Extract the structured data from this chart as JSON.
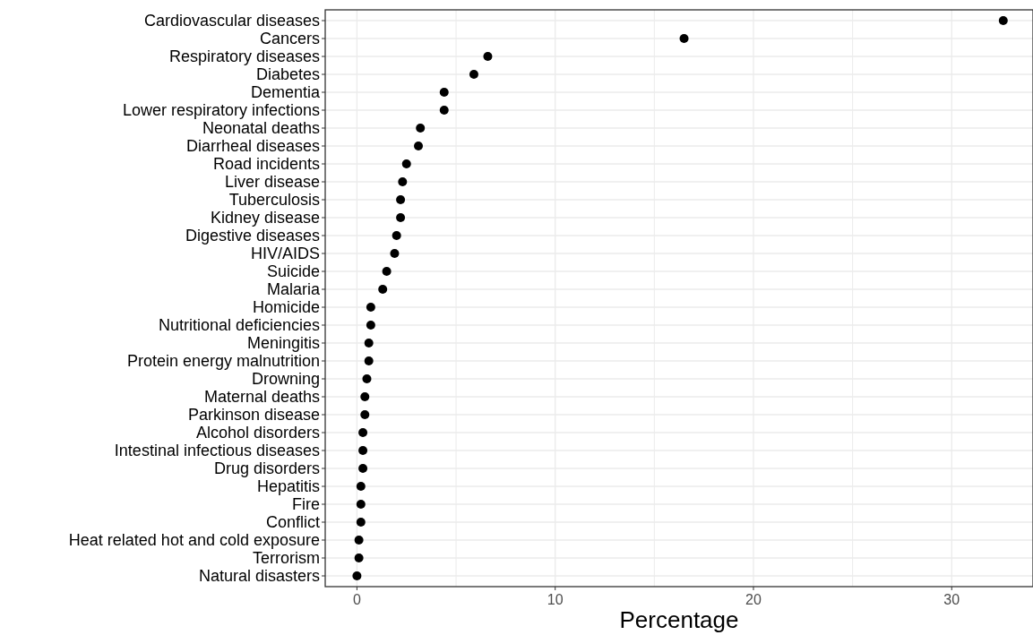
{
  "chart_data": {
    "type": "scatter",
    "xlabel": "Percentage",
    "categories": [
      "Cardiovascular diseases",
      "Cancers",
      "Respiratory diseases",
      "Diabetes",
      "Dementia",
      "Lower respiratory infections",
      "Neonatal deaths",
      "Diarrheal diseases",
      "Road incidents",
      "Liver disease",
      "Tuberculosis",
      "Kidney disease",
      "Digestive diseases",
      "HIV/AIDS",
      "Suicide",
      "Malaria",
      "Homicide",
      "Nutritional deficiencies",
      "Meningitis",
      "Protein energy malnutrition",
      "Drowning",
      "Maternal deaths",
      "Parkinson disease",
      "Alcohol disorders",
      "Intestinal infectious diseases",
      "Drug disorders",
      "Hepatitis",
      "Fire",
      "Conflict",
      "Heat related hot and cold exposure",
      "Terrorism",
      "Natural disasters"
    ],
    "orientation": "horizontal",
    "values": [
      32.6,
      16.5,
      6.6,
      5.9,
      4.4,
      4.4,
      3.2,
      3.1,
      2.5,
      2.3,
      2.2,
      2.2,
      2.0,
      1.9,
      1.5,
      1.3,
      0.7,
      0.7,
      0.6,
      0.6,
      0.5,
      0.4,
      0.4,
      0.3,
      0.3,
      0.3,
      0.2,
      0.2,
      0.2,
      0.1,
      0.1,
      0.0
    ],
    "color": "#000000",
    "marker": "circle",
    "xlim": [
      -1.6,
      34.1
    ],
    "xticks": [
      0,
      {
        "value": 5,
        "label": null
      },
      10,
      {
        "value": 15,
        "label": null
      },
      20,
      {
        "value": 25,
        "label": null
      },
      30
    ],
    "grid": true
  }
}
